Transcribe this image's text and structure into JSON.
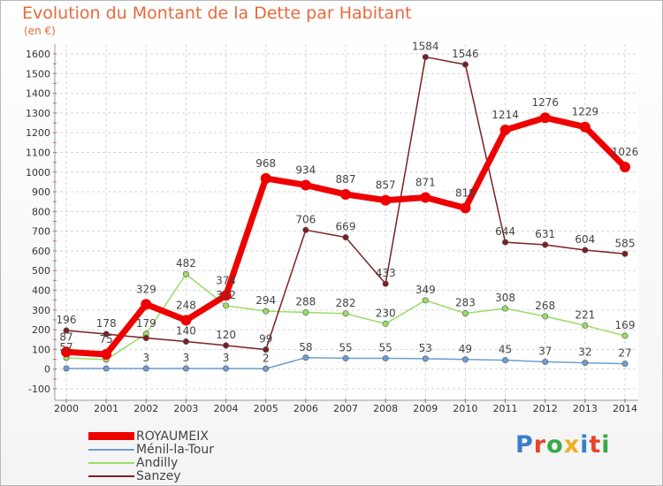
{
  "title": "Evolution du Montant de la Dette par Habitant",
  "subtitle": "(en €)",
  "logo": {
    "text": "Proxiti",
    "colors": [
      "#3a7ec8",
      "#e8442a",
      "#3aa84a",
      "#f0b020",
      "#3a7ec8",
      "#e8442a",
      "#3aa84a"
    ]
  },
  "chart_data": {
    "type": "line",
    "x": [
      "2000",
      "2001",
      "2002",
      "2003",
      "2004",
      "2005",
      "2006",
      "2007",
      "2008",
      "2009",
      "2010",
      "2011",
      "2012",
      "2013",
      "2014"
    ],
    "ylim": [
      -100,
      1600
    ],
    "yticks": [
      -100,
      0,
      100,
      200,
      300,
      400,
      500,
      600,
      700,
      800,
      900,
      1000,
      1100,
      1200,
      1300,
      1400,
      1500,
      1600
    ],
    "grid": true,
    "legend_position": "bottom-left",
    "series": [
      {
        "name": "ROYAUMEIX",
        "color": "#ee0000",
        "values": [
          87,
          75,
          329,
          248,
          374,
          968,
          934,
          887,
          857,
          871,
          818,
          1214,
          1276,
          1229,
          1026
        ]
      },
      {
        "name": "Ménil-la-Tour",
        "color": "#6e9ed0",
        "values": [
          3,
          3,
          3,
          3,
          3,
          2,
          58,
          55,
          55,
          53,
          49,
          45,
          37,
          32,
          27
        ]
      },
      {
        "name": "Andilly",
        "color": "#99dd66",
        "values": [
          57,
          48,
          179,
          482,
          322,
          294,
          288,
          282,
          230,
          349,
          283,
          308,
          268,
          221,
          169
        ]
      },
      {
        "name": "Sanzey",
        "color": "#7a2020",
        "values": [
          196,
          178,
          158,
          140,
          120,
          99,
          706,
          669,
          433,
          1584,
          1546,
          644,
          631,
          604,
          585
        ]
      }
    ],
    "labels": {
      "ROYAUMEIX": [
        "87",
        "75",
        "329",
        "248",
        "374",
        "968",
        "934",
        "887",
        "857",
        "871",
        "818",
        "1214",
        "1276",
        "1229",
        "1026"
      ],
      "Ménil-la-Tour": [
        "",
        "",
        "3",
        "3",
        "3",
        "2",
        "58",
        "55",
        "55",
        "53",
        "49",
        "45",
        "37",
        "32",
        "27"
      ],
      "Andilly": [
        "57",
        "",
        "179",
        "482",
        "322",
        "294",
        "288",
        "282",
        "230",
        "349",
        "283",
        "308",
        "268",
        "221",
        "169"
      ],
      "Sanzey": [
        "196",
        "178",
        "",
        "140",
        "120",
        "99",
        "706",
        "669",
        "433",
        "1584",
        "1546",
        "644",
        "631",
        "604",
        "585"
      ]
    }
  }
}
